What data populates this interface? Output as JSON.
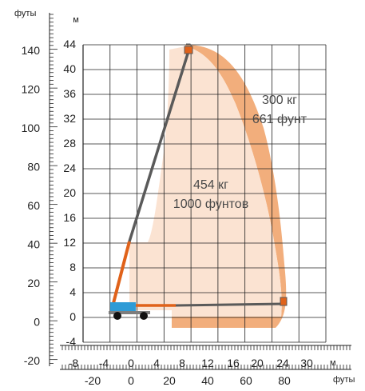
{
  "diagram": {
    "axes": {
      "left_unit": "футы",
      "inner_unit": "м",
      "bottom_unit_m": "м",
      "bottom_unit_ft": "футы"
    },
    "inner_ticks_m": [
      "44",
      "40",
      "36",
      "32",
      "28",
      "24",
      "20",
      "16",
      "12",
      "8",
      "4",
      "0",
      "-4"
    ],
    "left_ticks_ft": [
      "140",
      "120",
      "100",
      "80",
      "60",
      "40",
      "20",
      "0",
      "-20"
    ],
    "bottom_ticks_m": [
      "-8",
      "-4",
      "0",
      "4",
      "8",
      "12",
      "16",
      "20",
      "24",
      "30"
    ],
    "bottom_ticks_ft": [
      "-20",
      "0",
      "20",
      "40",
      "60",
      "80"
    ],
    "zones": {
      "outer_capacity_kg": "300 кг",
      "outer_capacity_lb": "661 фунт",
      "inner_capacity_kg": "454 кг",
      "inner_capacity_lb": "1000 фунтов"
    },
    "colors": {
      "outer_zone": "#f2ae7c",
      "inner_zone": "#fbe3d2",
      "boom_orange": "#e0621a",
      "boom_gray": "#5a5a5a",
      "chassis_blue": "#2e9bd6"
    }
  }
}
